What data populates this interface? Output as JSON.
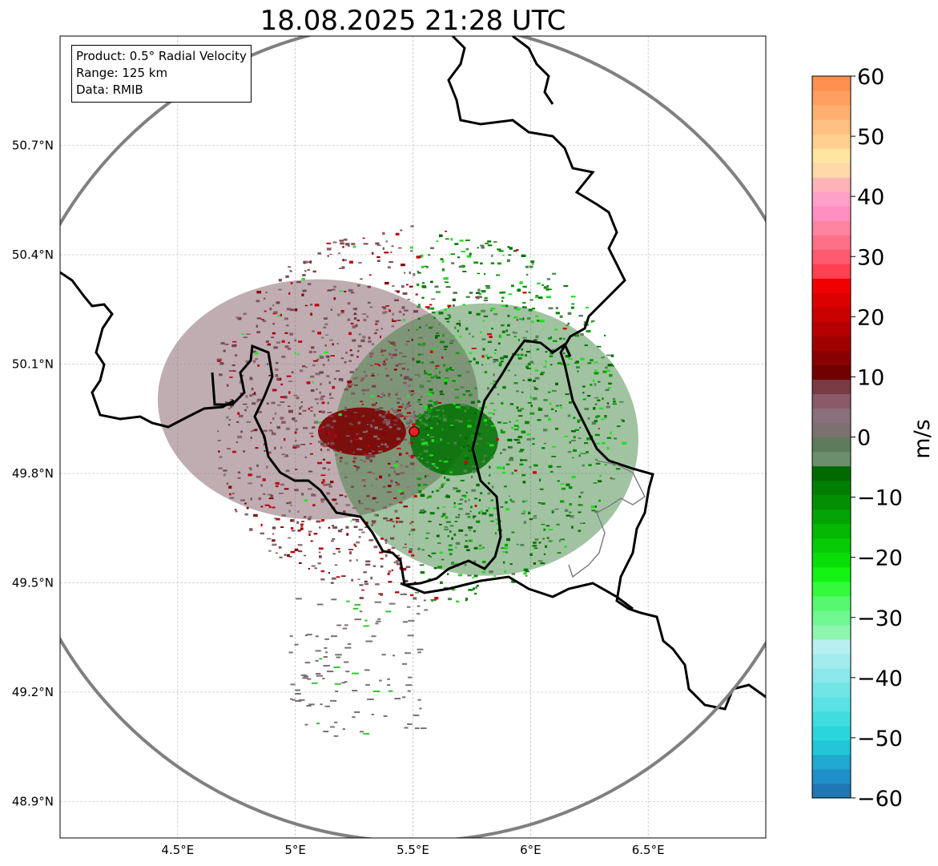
{
  "title": "18.08.2025 21:28 UTC",
  "info": {
    "product": "Product: 0.5° Radial Velocity",
    "range": "Range: 125 km",
    "data": "Data: RMIB"
  },
  "map": {
    "lon_range": [
      4.0,
      7.0
    ],
    "lat_range": [
      48.8,
      51.0
    ],
    "lat_ticks": [
      "50.7°N",
      "50.4°N",
      "50.1°N",
      "49.8°N",
      "49.5°N",
      "49.2°N",
      "48.9°N"
    ],
    "lat_values": [
      50.7,
      50.4,
      50.1,
      49.8,
      49.5,
      49.2,
      48.9
    ],
    "lon_ticks": [
      "4.5°E",
      "5°E",
      "5.5°E",
      "6°E",
      "6.5°E"
    ],
    "lon_values": [
      4.5,
      5.0,
      5.5,
      6.0,
      6.5
    ],
    "radar_site": {
      "lon": 5.505,
      "lat": 49.915
    },
    "range_ring_km": 125
  },
  "colorbar": {
    "label": "m/s",
    "ticks": [
      "60",
      "50",
      "40",
      "30",
      "20",
      "10",
      "0",
      "−10",
      "−20",
      "−30",
      "−40",
      "−50",
      "−60"
    ],
    "tick_values": [
      60,
      50,
      40,
      30,
      20,
      10,
      0,
      -10,
      -20,
      -30,
      -40,
      -50,
      -60
    ],
    "min": -60,
    "max": 60,
    "colors": [
      "#1f77b4",
      "#1f8fc8",
      "#20a8cf",
      "#22c6d6",
      "#2ad6dc",
      "#3fdde0",
      "#5ae2e4",
      "#70e5e6",
      "#8ae8ea",
      "#a2ecee",
      "#b8f0f2",
      "#8ff5b0",
      "#6ff790",
      "#55f86f",
      "#33fa3a",
      "#12f312",
      "#08df08",
      "#06cc06",
      "#04b804",
      "#03a403",
      "#029002",
      "#017e01",
      "#006a00",
      "#6a8f6a",
      "#5c7c5c",
      "#7c7070",
      "#8a707a",
      "#8a5a68",
      "#7a3a44",
      "#700000",
      "#8a0000",
      "#a00000",
      "#b40000",
      "#c80000",
      "#dc0000",
      "#f00000",
      "#ff4050",
      "#ff5a6e",
      "#ff6f88",
      "#ff84a2",
      "#ff8fc0",
      "#ffa0c8",
      "#ffb4b8",
      "#ffd8a8",
      "#ffe6a0",
      "#ffd090",
      "#ffc080",
      "#ffb070",
      "#ffa060",
      "#ff9050"
    ]
  }
}
